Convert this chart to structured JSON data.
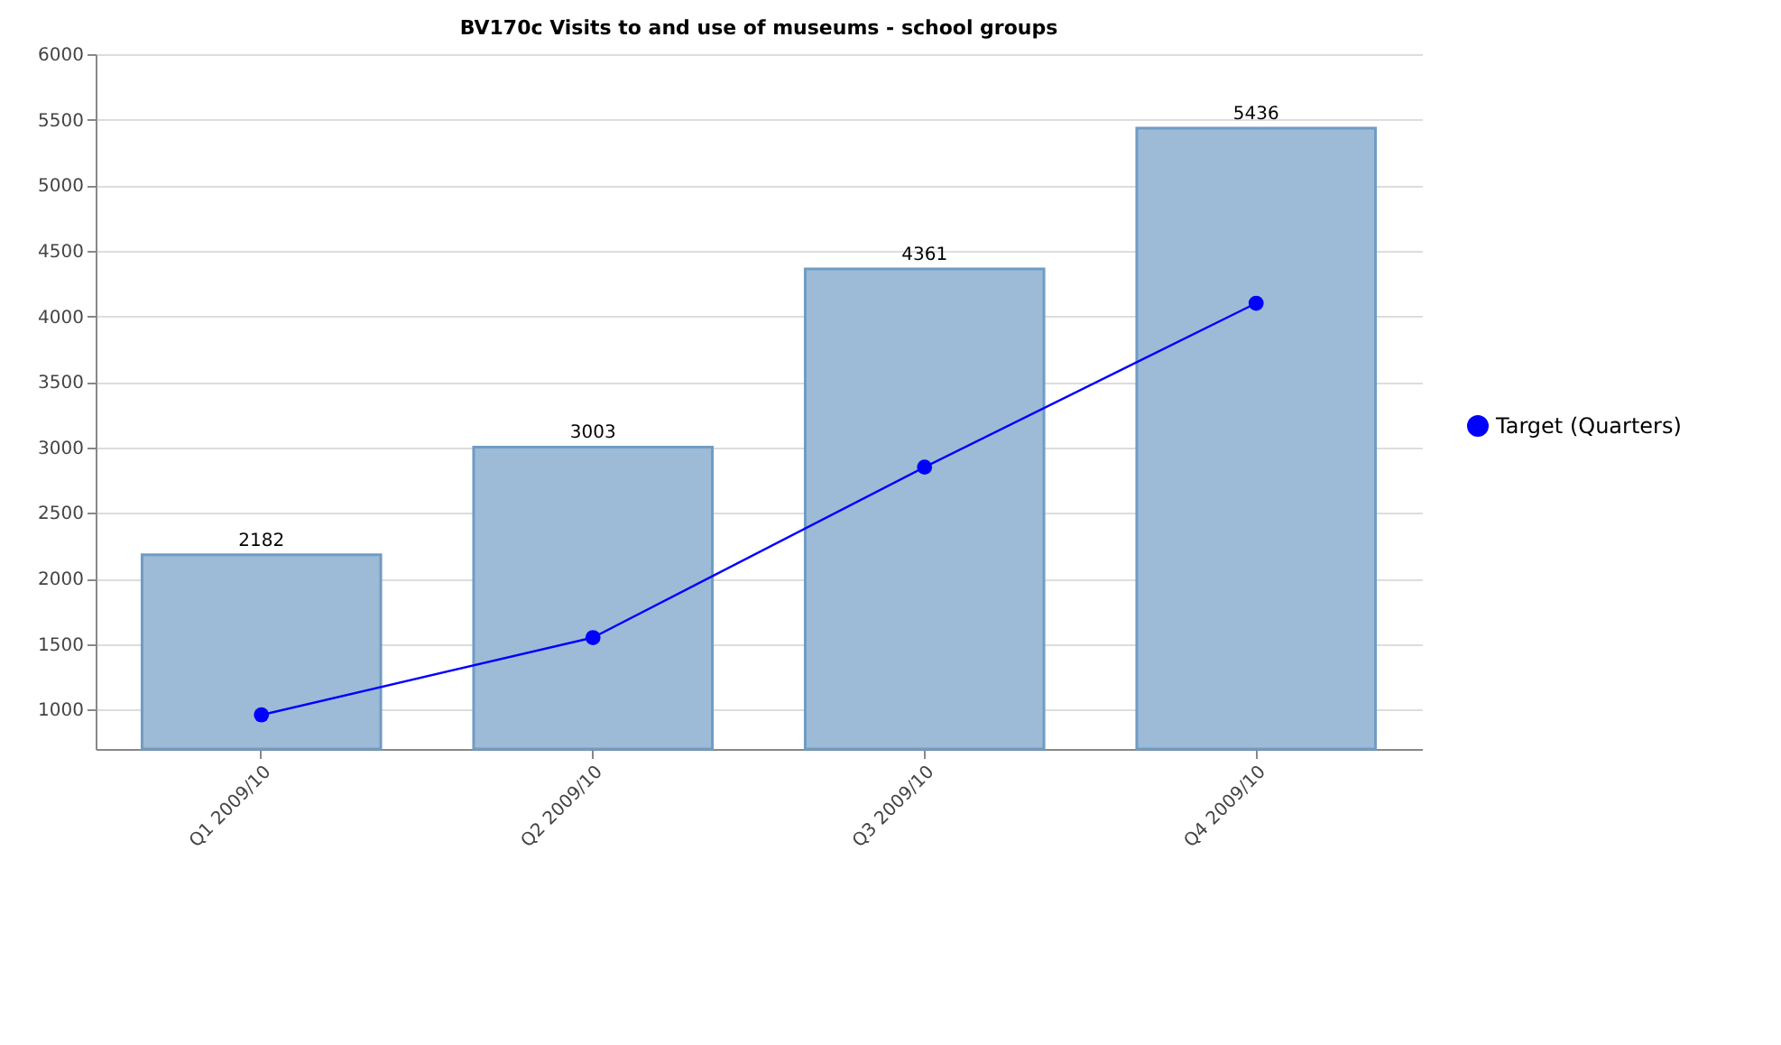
{
  "chart_data": {
    "type": "bar",
    "title": "BV170c Visits to and use of museums - school groups",
    "categories": [
      "Q1 2009/10",
      "Q2 2009/10",
      "Q3 2009/10",
      "Q4 2009/10"
    ],
    "series": [
      {
        "color": "#9dbbd6",
        "values": [
          2182,
          3003,
          4361,
          5436
        ],
        "value_labels": [
          "2182",
          "3003",
          "4361",
          "5436"
        ]
      },
      {
        "type": "line",
        "name": "Target (Quarters)",
        "color": "#0000ff",
        "values": [
          960,
          1550,
          2850,
          4100
        ],
        "marker": "circle",
        "line_style": "solid"
      }
    ],
    "ylim": [
      700,
      6000
    ],
    "yticks": [
      1000,
      1500,
      2000,
      2500,
      3000,
      3500,
      4000,
      4500,
      5000,
      5500,
      6000
    ],
    "grid": "y",
    "legend": "right"
  }
}
